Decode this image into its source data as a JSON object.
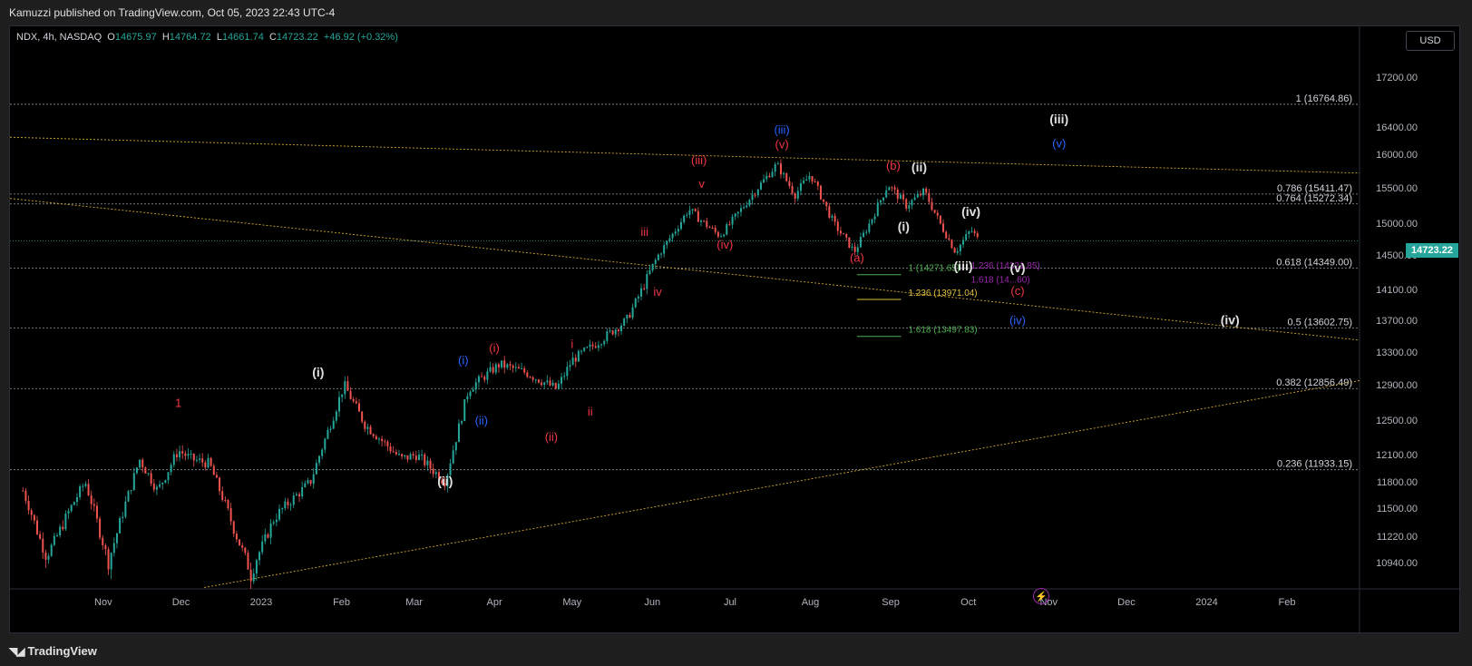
{
  "publisher": "Kamuzzi published on TradingView.com, Oct 05, 2023 22:43 UTC-4",
  "footer": {
    "brand": "TradingView",
    "logo_icon": "tradingview-logo-icon"
  },
  "legend": {
    "symbol": "NDX, 4h, NASDAQ",
    "open_label": "O",
    "open": "14675.97",
    "high_label": "H",
    "high": "14764.72",
    "low_label": "L",
    "low": "14661.74",
    "close_label": "C",
    "close": "14723.22",
    "change": "+46.92 (+0.32%)"
  },
  "currency": "USD",
  "last_price": "14723.22",
  "colors": {
    "up": "#26a69a",
    "down": "#ef5350",
    "fib_line": "#9598a1",
    "trendline": "#d4a72c",
    "red_wave": "#f23645",
    "blue_wave": "#2962ff",
    "white_wave": "#e0e0e0",
    "green_fib": "#4caf50",
    "yellow_fib": "#e0c040",
    "purple_fib": "#9c27b0"
  },
  "chart_data": {
    "type": "candlestick",
    "symbol": "NDX",
    "interval": "4h",
    "ylim": [
      10750,
      17500
    ],
    "y_ticks": [
      "17200.00",
      "16400.00",
      "16000.00",
      "15500.00",
      "15000.00",
      "14500.00",
      "14100.00",
      "13700.00",
      "13300.00",
      "12900.00",
      "12500.00",
      "12100.00",
      "11800.00",
      "11500.00",
      "11220.00",
      "10940.00"
    ],
    "x_ticks": [
      "Nov",
      "Dec",
      "2023",
      "Feb",
      "Mar",
      "Apr",
      "May",
      "Jun",
      "Jul",
      "Aug",
      "Sep",
      "Oct",
      "Nov",
      "Dec",
      "2024",
      "Feb"
    ],
    "series_points": [
      [
        "2022-10-01",
        11700
      ],
      [
        "2022-10-10",
        11000
      ],
      [
        "2022-10-25",
        11800
      ],
      [
        "2022-11-03",
        10950
      ],
      [
        "2022-11-15",
        12050
      ],
      [
        "2022-11-22",
        11700
      ],
      [
        "2022-11-30",
        12150
      ],
      [
        "2022-12-05",
        12050
      ],
      [
        "2022-12-12",
        12000
      ],
      [
        "2022-12-22",
        11250
      ],
      [
        "2022-12-28",
        10850
      ],
      [
        "2023-01-06",
        11400
      ],
      [
        "2023-01-20",
        11800
      ],
      [
        "2023-02-02",
        12900
      ],
      [
        "2023-02-10",
        12450
      ],
      [
        "2023-02-24",
        12050
      ],
      [
        "2023-03-02",
        12100
      ],
      [
        "2023-03-13",
        11800
      ],
      [
        "2023-03-22",
        12850
      ],
      [
        "2023-04-03",
        13150
      ],
      [
        "2023-04-13",
        13050
      ],
      [
        "2023-04-25",
        12850
      ],
      [
        "2023-05-01",
        13200
      ],
      [
        "2023-05-10",
        13400
      ],
      [
        "2023-05-22",
        13700
      ],
      [
        "2023-05-31",
        14300
      ],
      [
        "2023-06-15",
        15200
      ],
      [
        "2023-06-27",
        14800
      ],
      [
        "2023-07-19",
        15850
      ],
      [
        "2023-07-26",
        15400
      ],
      [
        "2023-08-01",
        15700
      ],
      [
        "2023-08-10",
        15000
      ],
      [
        "2023-08-18",
        14550
      ],
      [
        "2023-08-31",
        15550
      ],
      [
        "2023-09-07",
        15250
      ],
      [
        "2023-09-14",
        15450
      ],
      [
        "2023-09-26",
        14550
      ],
      [
        "2023-10-02",
        14900
      ],
      [
        "2023-10-05",
        14723
      ]
    ],
    "close": 14723.22,
    "fib_levels": [
      {
        "label": "1 (16764.86)",
        "value": 16764.86
      },
      {
        "label": "0.786 (15411.47)",
        "value": 15411.47
      },
      {
        "label": "0.764 (15272.34)",
        "value": 15272.34
      },
      {
        "label": "0.618 (14349.00)",
        "value": 14349.0
      },
      {
        "label": "0.5 (13602.75)",
        "value": 13602.75
      },
      {
        "label": "0.382 (12856.49)",
        "value": 12856.49
      },
      {
        "label": "0.236 (11933.15)",
        "value": 11933.15
      }
    ],
    "fib_extensions": [
      {
        "label": "1 (14271.65)",
        "value": 14271.65,
        "color": "#4caf50"
      },
      {
        "label": "1.236 (13971.04)",
        "value": 13971.04,
        "color": "#e0c040"
      },
      {
        "label": "1.618 (13497.83)",
        "value": 13497.83,
        "color": "#4caf50"
      },
      {
        "label": "1.236 (14321.85)",
        "value": 14321.85,
        "color": "#9c27b0"
      },
      {
        "label": "1.618 (14...60)",
        "value": 14160,
        "color": "#9c27b0"
      }
    ],
    "wave_labels": [
      {
        "text": "1",
        "date": "2022-11-30",
        "price": 12650,
        "color": "#f23645"
      },
      {
        "text": "(i)",
        "date": "2023-01-23",
        "price": 13000,
        "color": "#e0e0e0"
      },
      {
        "text": "(ii)",
        "date": "2023-03-13",
        "price": 11760,
        "color": "#e0e0e0"
      },
      {
        "text": "(i)",
        "date": "2023-03-20",
        "price": 13150,
        "color": "#2962ff"
      },
      {
        "text": "(ii)",
        "date": "2023-03-27",
        "price": 12450,
        "color": "#2962ff"
      },
      {
        "text": "(i)",
        "date": "2023-04-01",
        "price": 13300,
        "color": "#f23645"
      },
      {
        "text": "(ii)",
        "date": "2023-04-23",
        "price": 12260,
        "color": "#f23645"
      },
      {
        "text": "i",
        "date": "2023-05-01",
        "price": 13350,
        "color": "#f23645"
      },
      {
        "text": "ii",
        "date": "2023-05-08",
        "price": 12550,
        "color": "#f23645"
      },
      {
        "text": "iii",
        "date": "2023-05-29",
        "price": 14800,
        "color": "#f23645"
      },
      {
        "text": "iv",
        "date": "2023-06-03",
        "price": 14020,
        "color": "#f23645"
      },
      {
        "text": "(iii)",
        "date": "2023-06-19",
        "price": 15850,
        "color": "#f23645"
      },
      {
        "text": "v",
        "date": "2023-06-20",
        "price": 15500,
        "color": "#f23645"
      },
      {
        "text": "(iv)",
        "date": "2023-06-29",
        "price": 14600,
        "color": "#f23645"
      },
      {
        "text": "(iii)",
        "date": "2023-07-21",
        "price": 16300,
        "color": "#2962ff"
      },
      {
        "text": "(v)",
        "date": "2023-07-21",
        "price": 16090,
        "color": "#f23645"
      },
      {
        "text": "(a)",
        "date": "2023-08-19",
        "price": 14420,
        "color": "#f23645"
      },
      {
        "text": "(b)",
        "date": "2023-09-02",
        "price": 15770,
        "color": "#f23645"
      },
      {
        "text": "(i)",
        "date": "2023-09-06",
        "price": 14880,
        "color": "#e0e0e0"
      },
      {
        "text": "(ii)",
        "date": "2023-09-12",
        "price": 15740,
        "color": "#e0e0e0"
      },
      {
        "text": "(iv)",
        "date": "2023-10-02",
        "price": 15100,
        "color": "#e0e0e0"
      },
      {
        "text": "(iii)",
        "date": "2023-09-29",
        "price": 14320,
        "color": "#e0e0e0"
      },
      {
        "text": "(v)",
        "date": "2023-10-20",
        "price": 14300,
        "color": "#e0e0e0"
      },
      {
        "text": "(c)",
        "date": "2023-10-20",
        "price": 14030,
        "color": "#f23645"
      },
      {
        "text": "(iv)",
        "date": "2023-10-20",
        "price": 13650,
        "color": "#2962ff"
      },
      {
        "text": "(iii)",
        "date": "2023-11-05",
        "price": 16460,
        "color": "#e0e0e0"
      },
      {
        "text": "(v)",
        "date": "2023-11-05",
        "price": 16100,
        "color": "#2962ff"
      },
      {
        "text": "(iv)",
        "date": "2024-01-10",
        "price": 13650,
        "color": "#e0e0e0"
      }
    ],
    "trendlines": [
      {
        "from": [
          "2022-09-26",
          16250
        ],
        "to": [
          "2024-02-29",
          15720
        ]
      },
      {
        "from": [
          "2022-09-26",
          15350
        ],
        "to": [
          "2024-02-29",
          13450
        ]
      },
      {
        "from": [
          "2022-12-10",
          10760
        ],
        "to": [
          "2024-02-29",
          12950
        ]
      }
    ]
  }
}
